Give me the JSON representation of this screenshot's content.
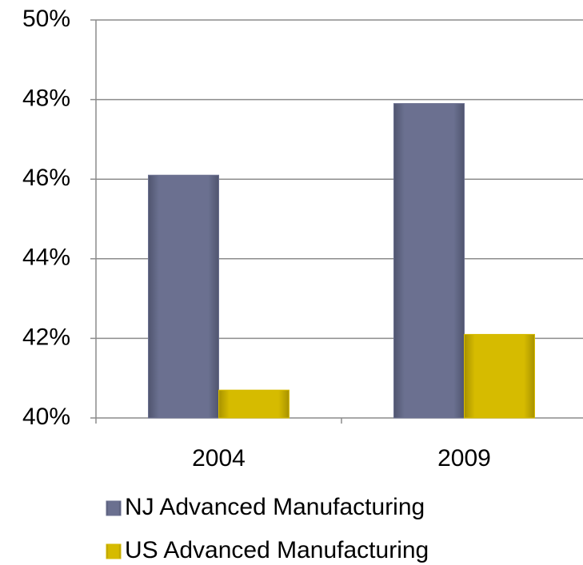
{
  "chart_data": {
    "type": "bar",
    "categories": [
      "2004",
      "2009"
    ],
    "series": [
      {
        "name": "NJ Advanced Manufacturing",
        "color": "#6b7090",
        "values": [
          46.1,
          47.9
        ]
      },
      {
        "name": "US Advanced Manufacturing",
        "color": "#d6bb00",
        "values": [
          40.7,
          42.1
        ]
      }
    ],
    "ylim": [
      40,
      50
    ],
    "yticks": [
      {
        "value": 40,
        "label": "40%"
      },
      {
        "value": 42,
        "label": "42%"
      },
      {
        "value": 44,
        "label": "44%"
      },
      {
        "value": 46,
        "label": "46%"
      },
      {
        "value": 48,
        "label": "48%"
      },
      {
        "value": 50,
        "label": "50%"
      }
    ],
    "grid": true,
    "legend": "bottom"
  }
}
